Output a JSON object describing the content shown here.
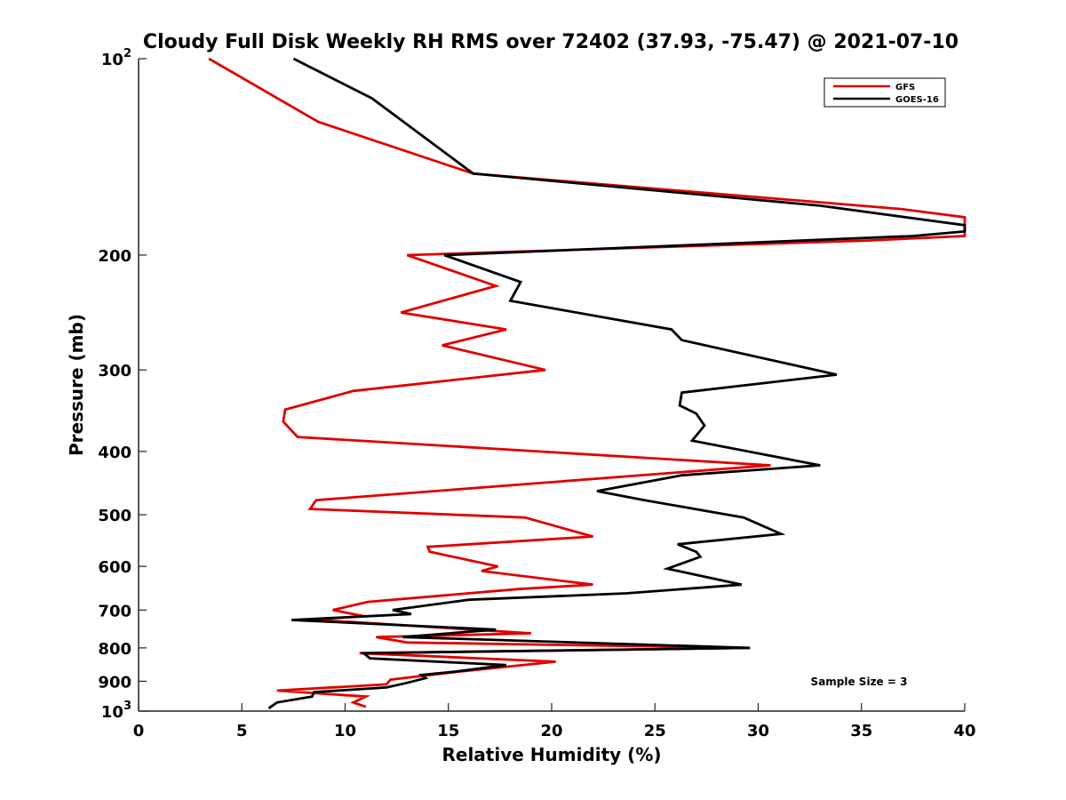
{
  "chart_data": {
    "type": "line",
    "title": "Cloudy Full Disk Weekly RH RMS over 72402 (37.93, -75.47) @ 2021-07-10",
    "xlabel": "Relative Humidity (%)",
    "ylabel": "Pressure (mb)",
    "xlim": [
      0,
      40
    ],
    "ylim": [
      100,
      1000
    ],
    "y_scale": "log",
    "y_reversed": true,
    "x_ticks": [
      "0",
      "5",
      "10",
      "15",
      "20",
      "25",
      "30",
      "35",
      "40"
    ],
    "y_ticks": [
      {
        "value": 100,
        "base": "10",
        "exp": "2"
      },
      {
        "value": 200,
        "label": "200"
      },
      {
        "value": 300,
        "label": "300"
      },
      {
        "value": 400,
        "label": "400"
      },
      {
        "value": 500,
        "label": "500"
      },
      {
        "value": 600,
        "label": "600"
      },
      {
        "value": 700,
        "label": "700"
      },
      {
        "value": 800,
        "label": "800"
      },
      {
        "value": 900,
        "label": "900"
      },
      {
        "value": 1000,
        "base": "10",
        "exp": "3"
      }
    ],
    "grid": false,
    "legend_position": "top-right",
    "annotation": "Sample Size = 3",
    "series": [
      {
        "name": "GFS",
        "color": "#e00000",
        "points": [
          [
            3.4,
            100
          ],
          [
            8.7,
            125
          ],
          [
            16.2,
            150
          ],
          [
            36.9,
            170
          ],
          [
            40.0,
            175
          ],
          [
            40.0,
            187
          ],
          [
            35.3,
            190
          ],
          [
            13.0,
            200
          ],
          [
            17.3,
            223
          ],
          [
            12.7,
            245
          ],
          [
            17.8,
            260
          ],
          [
            14.7,
            275
          ],
          [
            19.7,
            300
          ],
          [
            10.4,
            323
          ],
          [
            7.1,
            345
          ],
          [
            7.0,
            360
          ],
          [
            7.7,
            380
          ],
          [
            30.6,
            420
          ],
          [
            8.6,
            475
          ],
          [
            8.3,
            490
          ],
          [
            18.7,
            505
          ],
          [
            22.0,
            540
          ],
          [
            14.0,
            560
          ],
          [
            14.1,
            570
          ],
          [
            17.4,
            600
          ],
          [
            16.6,
            610
          ],
          [
            22.0,
            640
          ],
          [
            18.4,
            650
          ],
          [
            11.1,
            680
          ],
          [
            9.4,
            700
          ],
          [
            10.9,
            715
          ],
          [
            8.3,
            725
          ],
          [
            10.3,
            730
          ],
          [
            19.0,
            760
          ],
          [
            11.5,
            770
          ],
          [
            13.0,
            785
          ],
          [
            29.6,
            800
          ],
          [
            10.7,
            815
          ],
          [
            20.2,
            840
          ],
          [
            15.5,
            870
          ],
          [
            12.2,
            895
          ],
          [
            12.0,
            910
          ],
          [
            6.7,
            930
          ],
          [
            11.0,
            950
          ],
          [
            10.4,
            970
          ],
          [
            11.0,
            985
          ]
        ]
      },
      {
        "name": "GOES-16",
        "color": "#000000",
        "points": [
          [
            7.5,
            100
          ],
          [
            11.3,
            115
          ],
          [
            16.2,
            150
          ],
          [
            33.0,
            168
          ],
          [
            40.0,
            180
          ],
          [
            40.0,
            184
          ],
          [
            37.5,
            187
          ],
          [
            14.8,
            200
          ],
          [
            18.5,
            220
          ],
          [
            18.0,
            235
          ],
          [
            25.8,
            260
          ],
          [
            26.3,
            270
          ],
          [
            33.8,
            305
          ],
          [
            26.3,
            325
          ],
          [
            26.2,
            340
          ],
          [
            27.0,
            350
          ],
          [
            27.4,
            365
          ],
          [
            26.8,
            385
          ],
          [
            33.0,
            420
          ],
          [
            26.3,
            435
          ],
          [
            22.2,
            460
          ],
          [
            24.5,
            475
          ],
          [
            29.3,
            505
          ],
          [
            31.1,
            535
          ],
          [
            26.1,
            555
          ],
          [
            27.0,
            570
          ],
          [
            27.2,
            580
          ],
          [
            25.6,
            605
          ],
          [
            29.2,
            640
          ],
          [
            23.6,
            660
          ],
          [
            16.0,
            675
          ],
          [
            12.3,
            700
          ],
          [
            13.2,
            710
          ],
          [
            7.4,
            725
          ],
          [
            17.3,
            750
          ],
          [
            12.8,
            770
          ],
          [
            29.6,
            800
          ],
          [
            10.9,
            815
          ],
          [
            11.2,
            830
          ],
          [
            17.8,
            850
          ],
          [
            15.3,
            870
          ],
          [
            13.7,
            880
          ],
          [
            13.9,
            890
          ],
          [
            13.0,
            905
          ],
          [
            12.0,
            920
          ],
          [
            8.5,
            935
          ],
          [
            8.4,
            950
          ],
          [
            6.7,
            970
          ],
          [
            6.3,
            990
          ]
        ]
      }
    ]
  }
}
